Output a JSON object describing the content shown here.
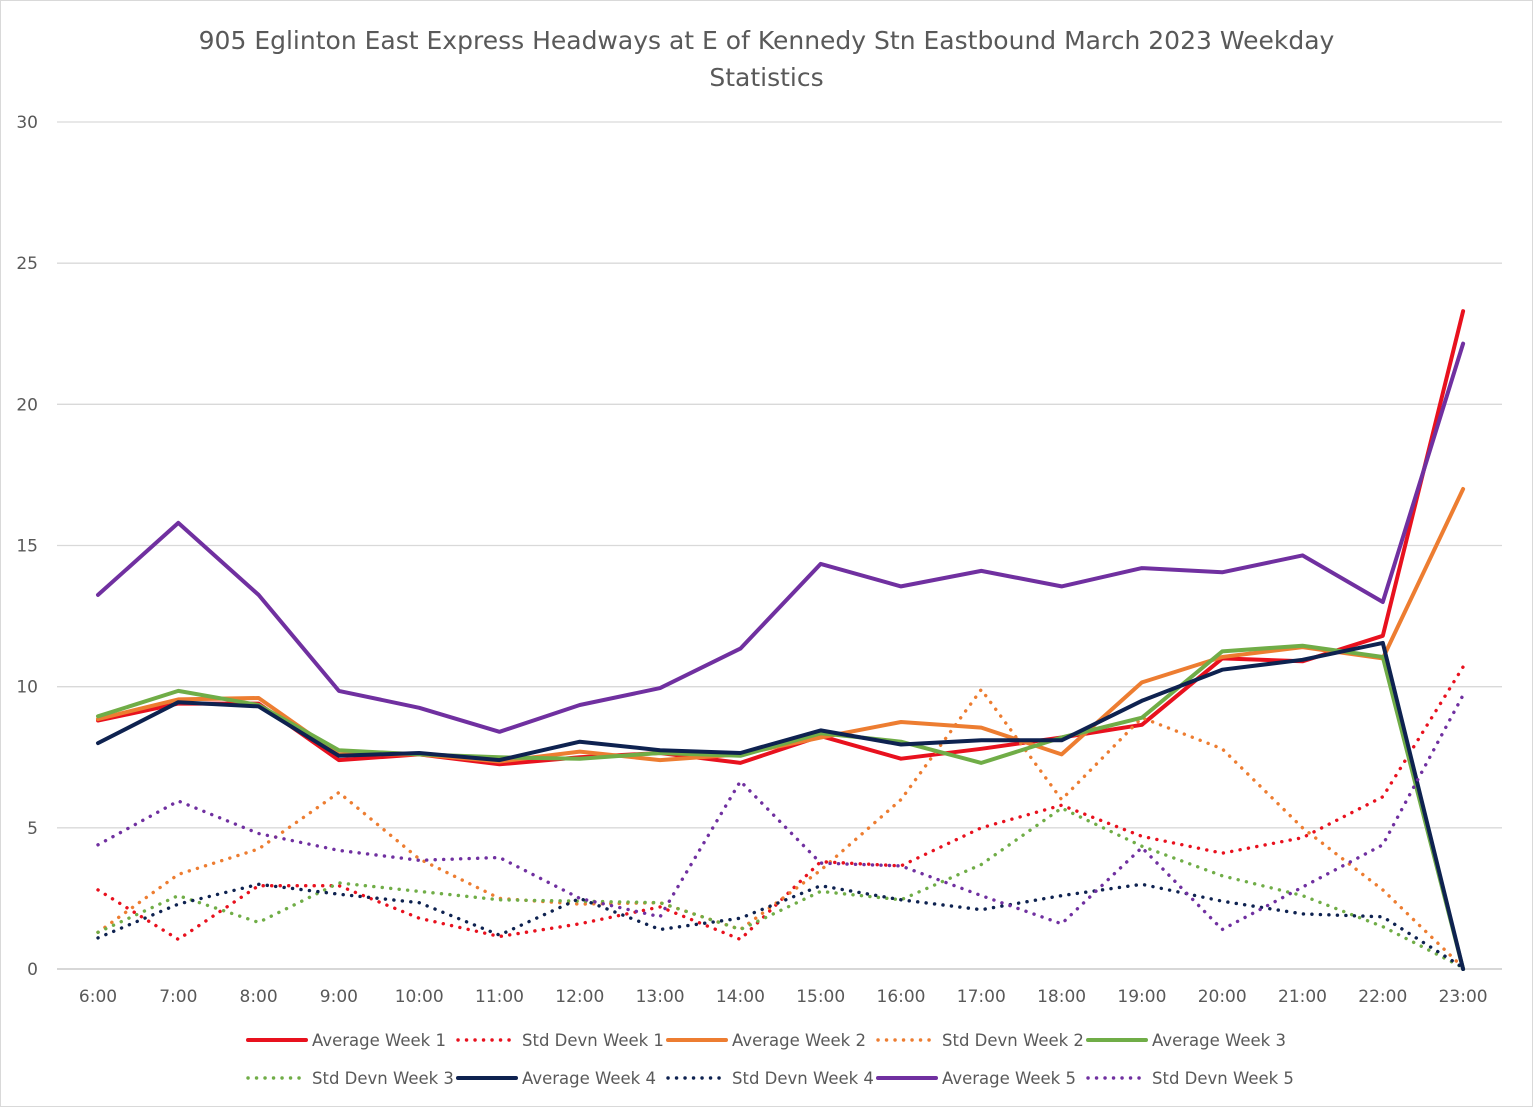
{
  "chart_data": {
    "type": "line",
    "title_line1": "905 Eglinton East Express Headways at E of Kennedy Stn Eastbound March 2023 Weekday",
    "title_line2": "Statistics",
    "xlabel": "",
    "ylabel": "",
    "ylim": [
      0,
      30
    ],
    "yticks": [
      0,
      5,
      10,
      15,
      20,
      25,
      30
    ],
    "grid": true,
    "legend_position": "bottom",
    "categories": [
      "6:00",
      "7:00",
      "8:00",
      "9:00",
      "10:00",
      "11:00",
      "12:00",
      "13:00",
      "14:00",
      "15:00",
      "16:00",
      "17:00",
      "18:00",
      "19:00",
      "20:00",
      "21:00",
      "22:00",
      "23:00"
    ],
    "series": [
      {
        "name": "Average Week 1",
        "color": "#e8111e",
        "style": "solid",
        "values": [
          8.8,
          9.4,
          9.4,
          7.4,
          7.6,
          7.25,
          7.5,
          7.65,
          7.3,
          8.25,
          7.45,
          7.8,
          8.2,
          8.65,
          11.0,
          10.9,
          11.8,
          23.3
        ]
      },
      {
        "name": "Std Devn Week 1",
        "color": "#e8111e",
        "style": "dotted",
        "values": [
          2.8,
          1.05,
          2.95,
          2.95,
          1.8,
          1.15,
          1.6,
          2.2,
          1.05,
          3.8,
          3.65,
          5.0,
          5.8,
          4.7,
          4.1,
          4.65,
          6.1,
          10.7
        ]
      },
      {
        "name": "Average Week 2",
        "color": "#ed7d31",
        "style": "solid",
        "values": [
          8.85,
          9.55,
          9.6,
          7.6,
          7.6,
          7.35,
          7.7,
          7.4,
          7.6,
          8.2,
          8.75,
          8.55,
          7.6,
          10.15,
          11.05,
          11.4,
          11.0,
          17.0
        ]
      },
      {
        "name": "Std Devn Week 2",
        "color": "#ed7d31",
        "style": "dotted",
        "values": [
          1.3,
          3.35,
          4.25,
          6.25,
          3.9,
          2.5,
          2.3,
          2.35,
          1.4,
          3.5,
          6.0,
          9.9,
          6.0,
          8.9,
          7.8,
          5.0,
          2.8,
          0.05
        ]
      },
      {
        "name": "Average Week 3",
        "color": "#70ad47",
        "style": "solid",
        "values": [
          8.95,
          9.85,
          9.35,
          7.75,
          7.6,
          7.5,
          7.45,
          7.65,
          7.55,
          8.35,
          8.05,
          7.3,
          8.2,
          8.9,
          11.25,
          11.45,
          11.05,
          0.0
        ]
      },
      {
        "name": "Std Devn Week 3",
        "color": "#70ad47",
        "style": "dotted",
        "values": [
          1.3,
          2.6,
          1.65,
          3.05,
          2.75,
          2.45,
          2.4,
          2.35,
          1.4,
          2.75,
          2.45,
          3.7,
          5.7,
          4.35,
          3.3,
          2.6,
          1.5,
          0.05
        ]
      },
      {
        "name": "Average Week 4",
        "color": "#0e2250",
        "style": "solid",
        "values": [
          8.0,
          9.45,
          9.3,
          7.55,
          7.65,
          7.4,
          8.05,
          7.75,
          7.65,
          8.45,
          7.95,
          8.1,
          8.1,
          9.5,
          10.6,
          10.95,
          11.55,
          0.0
        ]
      },
      {
        "name": "Std Devn Week 4",
        "color": "#0e2250",
        "style": "dotted",
        "values": [
          1.1,
          2.3,
          3.0,
          2.65,
          2.35,
          1.2,
          2.5,
          1.4,
          1.8,
          2.95,
          2.45,
          2.1,
          2.6,
          3.0,
          2.4,
          1.95,
          1.85,
          0.05
        ]
      },
      {
        "name": "Average Week 5",
        "color": "#7030a0",
        "style": "solid",
        "values": [
          13.25,
          15.8,
          13.25,
          9.85,
          9.25,
          8.4,
          9.35,
          9.95,
          11.35,
          14.35,
          13.55,
          14.1,
          13.55,
          14.2,
          14.05,
          14.65,
          13.0,
          22.15
        ]
      },
      {
        "name": "Std Devn Week 5",
        "color": "#7030a0",
        "style": "dotted",
        "values": [
          4.4,
          5.95,
          4.8,
          4.2,
          3.85,
          3.95,
          2.5,
          1.85,
          6.65,
          3.75,
          3.65,
          2.6,
          1.6,
          4.3,
          1.4,
          2.9,
          4.4,
          9.7
        ]
      }
    ]
  }
}
